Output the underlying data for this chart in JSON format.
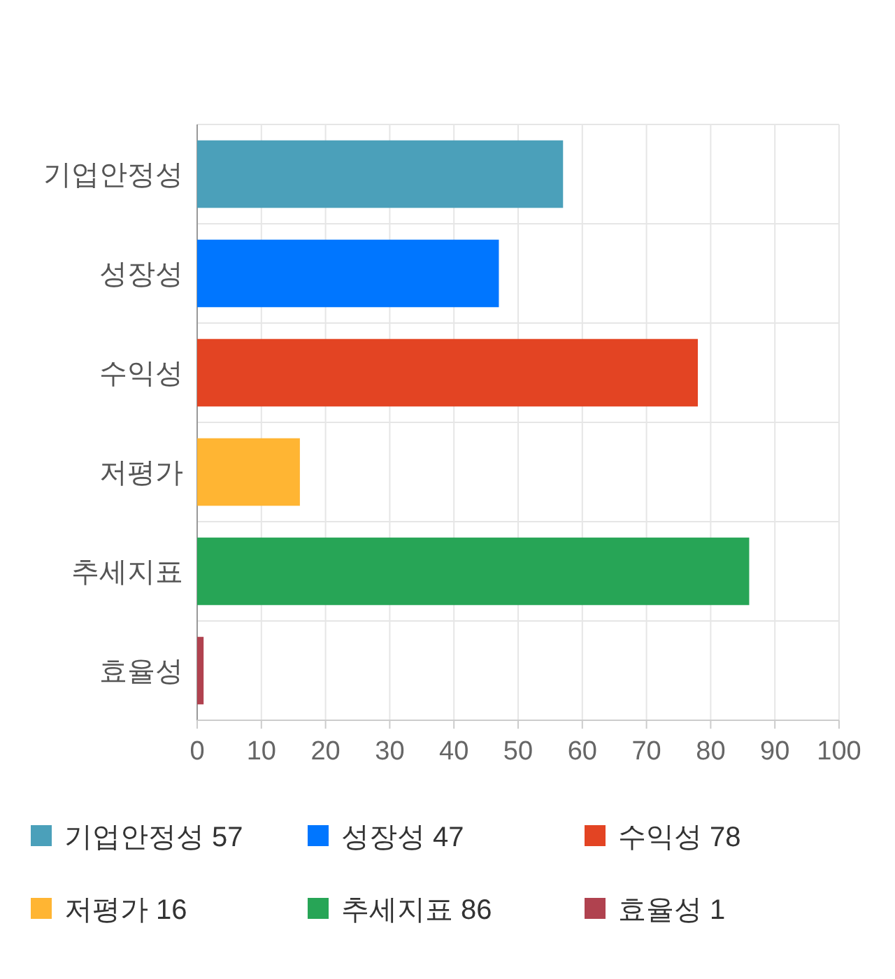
{
  "chart_data": {
    "type": "bar",
    "orientation": "horizontal",
    "categories": [
      "기업안정성",
      "성장성",
      "수익성",
      "저평가",
      "추세지표",
      "효율성"
    ],
    "series": [
      {
        "name": "기업안정성 57",
        "color": "#4ba0ba",
        "values": [
          57,
          null,
          null,
          null,
          null,
          null
        ]
      },
      {
        "name": "성장성 47",
        "color": "#0076ff",
        "values": [
          null,
          47,
          null,
          null,
          null,
          null
        ]
      },
      {
        "name": "수익성 78",
        "color": "#e34423",
        "values": [
          null,
          null,
          78,
          null,
          null,
          null
        ]
      },
      {
        "name": "저평가 16",
        "color": "#ffb533",
        "values": [
          null,
          null,
          null,
          16,
          null,
          null
        ]
      },
      {
        "name": "추세지표 86",
        "color": "#27a556",
        "values": [
          null,
          null,
          null,
          null,
          86,
          null
        ]
      },
      {
        "name": "효율성 1",
        "color": "#b0424f",
        "values": [
          null,
          null,
          null,
          null,
          null,
          1
        ]
      }
    ],
    "xlim": [
      0,
      100
    ],
    "xticks": [
      0,
      10,
      20,
      30,
      40,
      50,
      60,
      70,
      80,
      90,
      100
    ],
    "grid": true,
    "legend": "bottom"
  }
}
